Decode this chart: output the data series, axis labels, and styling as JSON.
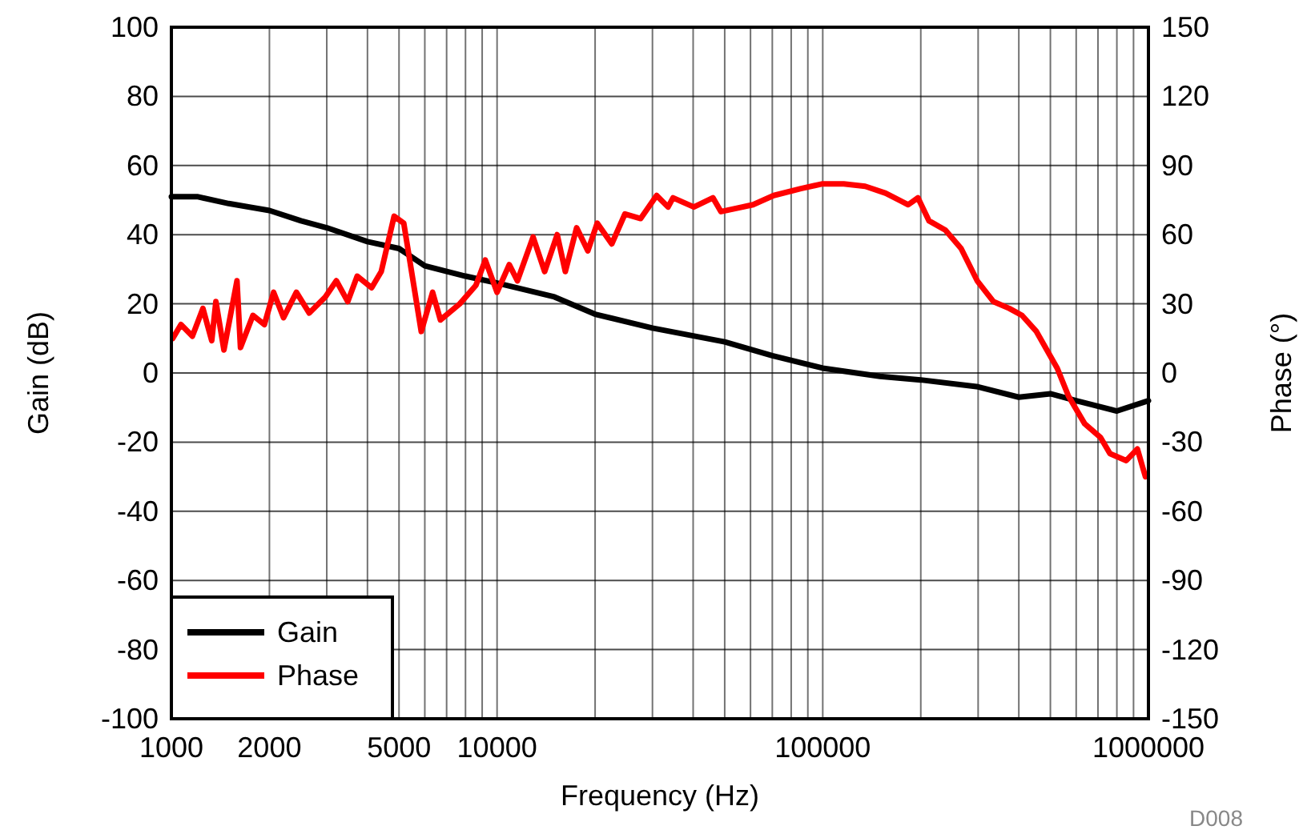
{
  "chart_data": {
    "type": "line",
    "xlabel": "Frequency (Hz)",
    "ylabel": "Gain (dB)",
    "y2label": "Phase (°)",
    "log": "x",
    "grid": true,
    "legend": "bottom left",
    "xlim": [
      1000,
      1000000
    ],
    "xticks": [
      1000,
      2000,
      {
        "value": 3000,
        "label": null
      },
      {
        "value": 4000,
        "label": null
      },
      5000,
      {
        "value": 6000,
        "label": null
      },
      {
        "value": 7000,
        "label": null
      },
      {
        "value": 8000,
        "label": null
      },
      {
        "value": 9000,
        "label": null
      },
      10000,
      {
        "value": 20000,
        "label": null
      },
      {
        "value": 30000,
        "label": null
      },
      {
        "value": 40000,
        "label": null
      },
      {
        "value": 50000,
        "label": null
      },
      {
        "value": 60000,
        "label": null
      },
      {
        "value": 70000,
        "label": null
      },
      {
        "value": 80000,
        "label": null
      },
      {
        "value": 90000,
        "label": null
      },
      100000,
      {
        "value": 200000,
        "label": null
      },
      {
        "value": 300000,
        "label": null
      },
      {
        "value": 400000,
        "label": null
      },
      {
        "value": 500000,
        "label": null
      },
      {
        "value": 600000,
        "label": null
      },
      {
        "value": 700000,
        "label": null
      },
      {
        "value": 800000,
        "label": null
      },
      {
        "value": 900000,
        "label": null
      },
      1000000
    ],
    "ylim": [
      -100,
      100
    ],
    "yticks": [
      -100,
      -80,
      -60,
      -40,
      -20,
      0,
      20,
      40,
      60,
      80,
      100
    ],
    "y2lim": [
      -150,
      150
    ],
    "y2ticks": [
      -150,
      -120,
      -90,
      -60,
      -30,
      0,
      30,
      60,
      90,
      120,
      150
    ],
    "annotations": [
      "D008"
    ],
    "series": [
      {
        "name": "Gain",
        "color": "#000000",
        "x": [
          1000,
          1200,
          1500,
          2000,
          2500,
          3000,
          4000,
          5000,
          6000,
          8000,
          10000,
          15000,
          20000,
          30000,
          50000,
          70000,
          100000,
          150000,
          200000,
          300000,
          400000,
          500000,
          600000,
          800000,
          1000000
        ],
        "values": [
          51,
          51,
          49,
          47,
          44,
          42,
          38,
          36,
          31,
          28,
          26,
          22,
          17,
          13,
          9,
          5,
          1.4,
          -1,
          -2,
          -4,
          -7,
          -6,
          -8,
          -11,
          -8
        ]
      },
      {
        "name": "Phase",
        "color": "#ff0000",
        "axis": "y2",
        "x": [
          1010,
          1070,
          1160,
          1250,
          1330,
          1370,
          1450,
          1590,
          1630,
          1780,
          1930,
          2060,
          2210,
          2420,
          2650,
          2970,
          3210,
          3480,
          3720,
          4120,
          4410,
          4830,
          5170,
          5850,
          6340,
          6700,
          7680,
          8610,
          9200,
          10000,
          10900,
          11550,
          12900,
          14000,
          15300,
          16200,
          17550,
          19000,
          20300,
          22500,
          24700,
          27600,
          30900,
          33500,
          34700,
          40200,
          46000,
          48700,
          61100,
          70700,
          85700,
          99300,
          116000,
          135000,
          156000,
          183000,
          196000,
          212000,
          238000,
          266000,
          298000,
          334000,
          374000,
          409000,
          453000,
          525000,
          568000,
          637000,
          713000,
          762000,
          855000,
          925000,
          979000
        ],
        "values": [
          15,
          21,
          16,
          28,
          14,
          31,
          10,
          40,
          11,
          25,
          21,
          35,
          24,
          35,
          26,
          33,
          40,
          31,
          42,
          37,
          44,
          68,
          65,
          18,
          35,
          23,
          30,
          38,
          49,
          35,
          47,
          40,
          59,
          44,
          60,
          44,
          63,
          53,
          65,
          56,
          69,
          67,
          77,
          72,
          76,
          72,
          76,
          70,
          73,
          77,
          80,
          82,
          82,
          81,
          78,
          73,
          76,
          66,
          62,
          54,
          40,
          31,
          28,
          25,
          18,
          2,
          -10,
          -22,
          -28,
          -35,
          -38,
          -33,
          -45
        ]
      }
    ]
  }
}
